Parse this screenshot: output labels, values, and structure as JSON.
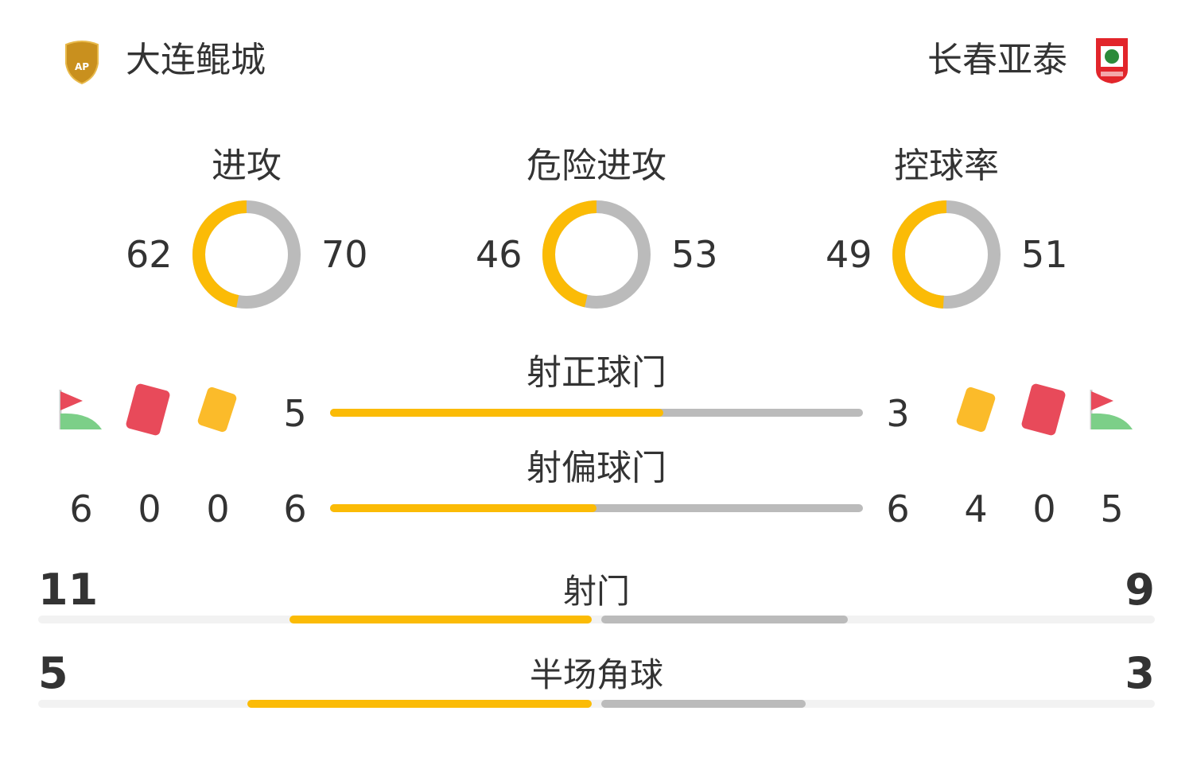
{
  "home": {
    "name": "大连鲲城",
    "logo": "dalian-kuncheng-crest"
  },
  "away": {
    "name": "长春亚泰",
    "logo": "changchun-yatai-crest"
  },
  "colors": {
    "home": "#fbbb06",
    "away": "#bbbbbb"
  },
  "donuts": [
    {
      "label": "进攻",
      "home": 62,
      "away": 70
    },
    {
      "label": "危险进攻",
      "home": 46,
      "away": 53
    },
    {
      "label": "控球率",
      "home": 49,
      "away": 51
    }
  ],
  "bars": [
    {
      "label": "射正球门",
      "home": 5,
      "away": 3
    },
    {
      "label": "射偏球门",
      "home": 6,
      "away": 6
    }
  ],
  "icons": {
    "corner": "corner-flag-icon",
    "red": "red-card-icon",
    "yellow": "yellow-card-icon"
  },
  "home_counts": {
    "corners": 6,
    "red_cards": 0,
    "yellow_cards": 0
  },
  "away_counts": {
    "corners": 5,
    "red_cards": 0,
    "yellow_cards": 4
  },
  "wide_bars": [
    {
      "label": "射门",
      "home": 11,
      "away": 9
    },
    {
      "label": "半场角球",
      "home": 5,
      "away": 3
    }
  ]
}
